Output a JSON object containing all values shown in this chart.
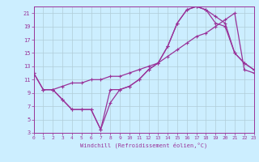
{
  "xlabel": "Windchill (Refroidissement éolien,°C)",
  "bg_color": "#cceeff",
  "grid_color": "#aaccdd",
  "line_color": "#993399",
  "xlim": [
    0,
    23
  ],
  "ylim": [
    3,
    22
  ],
  "xticks": [
    0,
    1,
    2,
    3,
    4,
    5,
    6,
    7,
    8,
    9,
    10,
    11,
    12,
    13,
    14,
    15,
    16,
    17,
    18,
    19,
    20,
    21,
    22,
    23
  ],
  "yticks": [
    3,
    5,
    7,
    9,
    11,
    13,
    15,
    17,
    19,
    21
  ],
  "line1_x": [
    0,
    1,
    2,
    3,
    4,
    5,
    6,
    7,
    8,
    9,
    10,
    11,
    12,
    13,
    14,
    15,
    16,
    17,
    18,
    19,
    20,
    21,
    22,
    23
  ],
  "line1_y": [
    12,
    9.5,
    9.5,
    10,
    10.5,
    10.5,
    11,
    11,
    11.5,
    11.5,
    12,
    12.5,
    13,
    13.5,
    14.5,
    15.5,
    16.5,
    17.5,
    18,
    19,
    20,
    21,
    12.5,
    12
  ],
  "line2_x": [
    0,
    1,
    2,
    3,
    4,
    5,
    6,
    7,
    8,
    9,
    10,
    11,
    12,
    13,
    14,
    15,
    16,
    17,
    18,
    19,
    20,
    21,
    22,
    23
  ],
  "line2_y": [
    12,
    9.5,
    9.5,
    8,
    6.5,
    6.5,
    6.5,
    3.5,
    9.5,
    9.5,
    10,
    11,
    12.5,
    13.5,
    16,
    19.5,
    21.5,
    22,
    21.5,
    19.5,
    19,
    15,
    13.5,
    12.5
  ],
  "line3_x": [
    1,
    2,
    3,
    4,
    5,
    6,
    7,
    8,
    9,
    10,
    11,
    12,
    13,
    14,
    15,
    16,
    17,
    18,
    19,
    20,
    21,
    22,
    23
  ],
  "line3_y": [
    9.5,
    9.5,
    8,
    6.5,
    6.5,
    6.5,
    3.5,
    7.5,
    9.5,
    10,
    11,
    12.5,
    13.5,
    16,
    19.5,
    21.5,
    22,
    21.5,
    20.5,
    19.5,
    15,
    13.5,
    12.5
  ]
}
